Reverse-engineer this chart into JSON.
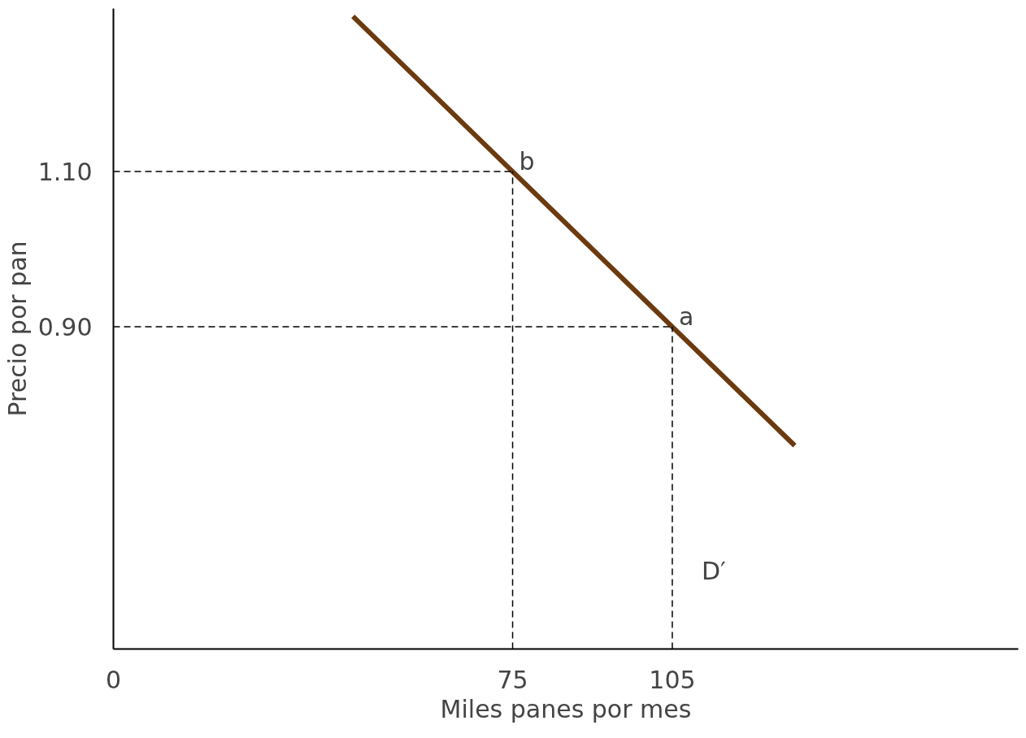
{
  "chart_data": {
    "type": "line",
    "xlabel": "Miles panes por mes",
    "ylabel": "Precio por pan",
    "xlim": [
      0,
      170
    ],
    "ylim": [
      0.485,
      1.31
    ],
    "xticks": [
      0,
      75,
      105
    ],
    "yticks": [
      {
        "value": 0.9,
        "label": "0.90"
      },
      {
        "value": 1.1,
        "label": "1.10"
      }
    ],
    "grid": false,
    "marker": "none",
    "series": [
      {
        "color": "#6b3a0f",
        "x": [
          45,
          75,
          105,
          128
        ],
        "values": [
          1.3,
          1.1,
          0.9,
          0.747
        ],
        "line_style": "solid"
      },
      {
        "color": "#000000",
        "x": [
          0,
          75
        ],
        "values": [
          1.1,
          1.1
        ],
        "line_style": "dashed"
      },
      {
        "color": "#000000",
        "x": [
          75,
          75
        ],
        "values": [
          0.485,
          1.1
        ],
        "line_style": "dashed"
      },
      {
        "color": "#000000",
        "x": [
          0,
          105
        ],
        "values": [
          0.9,
          0.9
        ],
        "line_style": "dashed"
      },
      {
        "color": "#000000",
        "x": [
          105,
          105
        ],
        "values": [
          0.485,
          0.9
        ],
        "line_style": "dashed"
      }
    ],
    "annotations": [
      {
        "text": "b",
        "x": 75,
        "y": 1.1
      },
      {
        "text": "a",
        "x": 105,
        "y": 0.9
      },
      "D′"
    ]
  }
}
